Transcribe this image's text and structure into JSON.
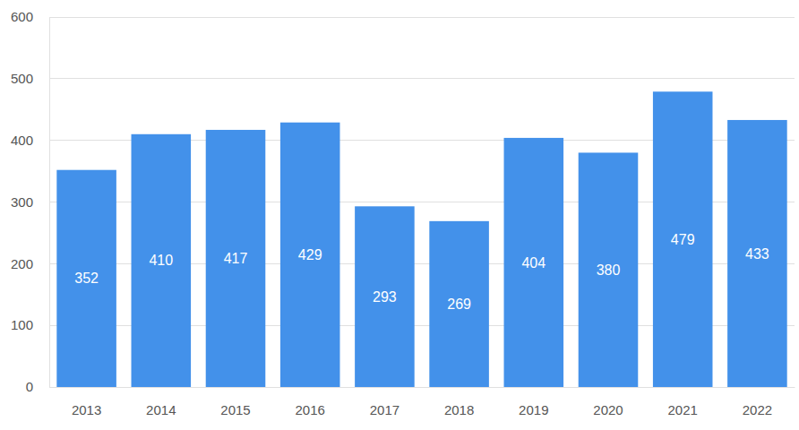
{
  "chart_data": {
    "type": "bar",
    "categories": [
      "2013",
      "2014",
      "2015",
      "2016",
      "2017",
      "2018",
      "2019",
      "2020",
      "2021",
      "2022"
    ],
    "values": [
      352,
      410,
      417,
      429,
      293,
      269,
      404,
      380,
      479,
      433
    ],
    "color": "#4391ea",
    "ylim": [
      0,
      600
    ],
    "yticks": [
      0,
      100,
      200,
      300,
      400,
      500,
      600
    ],
    "grid": true,
    "data_labels": true
  }
}
